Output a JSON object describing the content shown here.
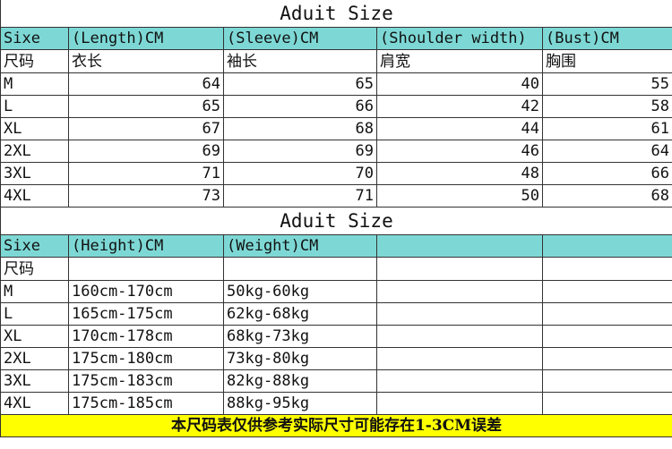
{
  "table1": {
    "title": "Aduit Size",
    "headers": [
      "Sixe",
      "(Length)CM",
      "(Sleeve)CM",
      "(Shoulder width)",
      "(Bust)CM"
    ],
    "headers_cn": [
      "尺码",
      "衣长",
      "袖长",
      "肩宽",
      "胸围"
    ],
    "rows": [
      [
        "M",
        "64",
        "65",
        "40",
        "55"
      ],
      [
        "L",
        "65",
        "66",
        "42",
        "58"
      ],
      [
        "XL",
        "67",
        "68",
        "44",
        "61"
      ],
      [
        "2XL",
        "69",
        "69",
        "46",
        "64"
      ],
      [
        "3XL",
        "71",
        "70",
        "48",
        "66"
      ],
      [
        "4XL",
        "73",
        "71",
        "50",
        "68"
      ]
    ]
  },
  "table2": {
    "title": "Aduit Size",
    "headers": [
      "Sixe",
      "(Height)CM",
      "(Weight)CM",
      "",
      ""
    ],
    "headers_cn": [
      "尺码",
      "",
      "",
      "",
      ""
    ],
    "rows": [
      [
        "M",
        "160cm-170cm",
        "50kg-60kg",
        "",
        ""
      ],
      [
        "L",
        "165cm-175cm",
        "62kg-68kg",
        "",
        ""
      ],
      [
        "XL",
        "170cm-178cm",
        "68kg-73kg",
        "",
        ""
      ],
      [
        "2XL",
        "175cm-180cm",
        "73kg-80kg",
        "",
        ""
      ],
      [
        "3XL",
        "175cm-183cm",
        "82kg-88kg",
        "",
        ""
      ],
      [
        "4XL",
        "175cm-185cm",
        "88kg-95kg",
        "",
        ""
      ]
    ]
  },
  "footer_note": "本尺码表仅供参考实际尺寸可能存在1-3CM误差",
  "colors": {
    "header": "#7dd8d5",
    "footer": "#ffff00"
  }
}
